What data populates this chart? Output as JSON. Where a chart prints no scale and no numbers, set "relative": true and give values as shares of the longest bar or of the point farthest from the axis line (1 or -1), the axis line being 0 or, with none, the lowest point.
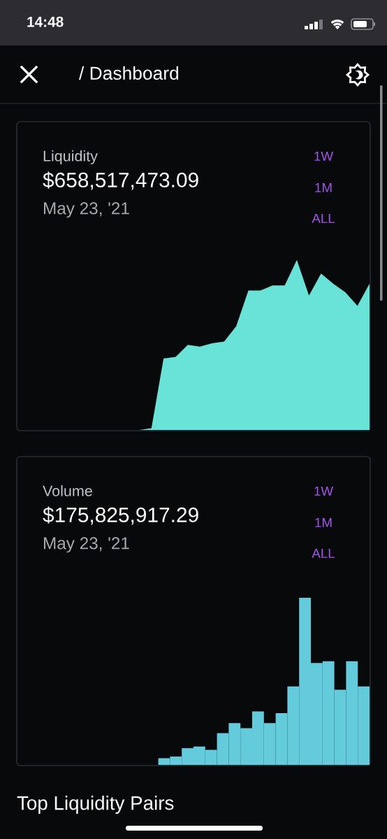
{
  "chart_data": [
    {
      "type": "other",
      "title": "/ Dashboard",
      "annotations": [
        "14:48"
      ]
    },
    {
      "type": "area",
      "title": "Liquidity",
      "subtitle": "$658,517,473.09",
      "annotations": [
        "May 23, '21",
        "1W",
        "1M",
        "ALL"
      ],
      "relative": true,
      "categories": [
        null,
        null,
        null,
        null,
        null,
        null,
        null,
        null,
        null,
        null,
        null,
        null,
        null,
        null,
        null,
        null,
        null,
        null,
        null,
        null,
        null,
        null,
        null,
        null,
        null,
        null,
        null,
        null,
        null,
        null
      ],
      "values": [
        0,
        0,
        0,
        0,
        0,
        0,
        0,
        0,
        0,
        0,
        0,
        0.01,
        0.42,
        0.43,
        0.5,
        0.49,
        0.51,
        0.52,
        0.61,
        0.82,
        0.82,
        0.85,
        0.85,
        1,
        0.79,
        0.92,
        0.86,
        0.81,
        0.73,
        0.86
      ],
      "color": "#69e3d7"
    },
    {
      "type": "bar",
      "title": "Volume",
      "subtitle": "$175,825,917.29",
      "annotations": [
        "May 23, '21",
        "1W",
        "1M",
        "ALL"
      ],
      "relative": true,
      "categories": [
        null,
        null,
        null,
        null,
        null,
        null,
        null,
        null,
        null,
        null,
        null,
        null,
        null,
        null,
        null,
        null,
        null,
        null,
        null,
        null,
        null,
        null,
        null,
        null,
        null,
        null,
        null,
        null,
        null,
        null
      ],
      "values": [
        null,
        null,
        null,
        null,
        null,
        null,
        null,
        null,
        null,
        null,
        null,
        null,
        0.04,
        0.05,
        0.1,
        0.11,
        0.09,
        0.19,
        0.25,
        0.22,
        0.32,
        0.25,
        0.31,
        0.47,
        1,
        0.61,
        0.62,
        0.45,
        0.62,
        0.47
      ],
      "color": "#63cbdc"
    },
    {
      "type": "other",
      "title": "Top Liquidity Pairs"
    }
  ]
}
